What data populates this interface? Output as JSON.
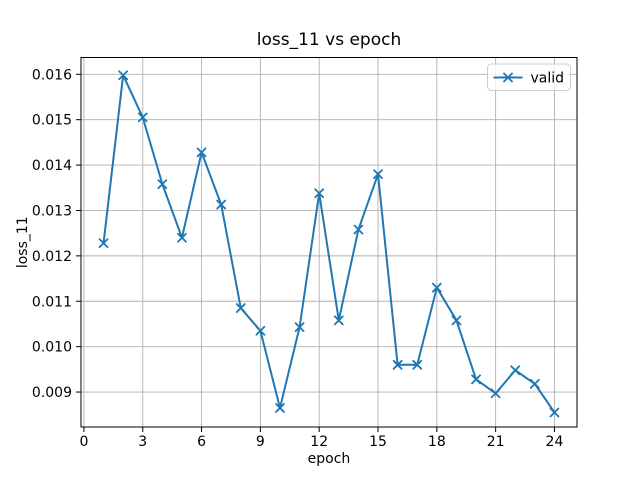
{
  "figure": {
    "background": "#ffffff",
    "text_color": "#000000"
  },
  "chart_data": {
    "type": "line",
    "title": "loss_11 vs epoch",
    "xlabel": "epoch",
    "ylabel": "loss_11",
    "x": [
      1,
      2,
      3,
      4,
      5,
      6,
      7,
      8,
      9,
      10,
      11,
      12,
      13,
      14,
      15,
      16,
      17,
      18,
      19,
      20,
      21,
      22,
      23,
      24
    ],
    "series": [
      {
        "name": "valid",
        "color": "#1f77b4",
        "marker": "x",
        "values": [
          0.01228,
          0.01598,
          0.01505,
          0.01358,
          0.0124,
          0.01428,
          0.01313,
          0.01085,
          0.01035,
          0.00865,
          0.01043,
          0.01338,
          0.01058,
          0.01258,
          0.0138,
          0.0096,
          0.0096,
          0.0113,
          0.01058,
          0.00928,
          0.00897,
          0.00948,
          0.00918,
          0.00855
        ]
      }
    ],
    "xticks": [
      0,
      3,
      6,
      9,
      12,
      15,
      18,
      21,
      24
    ],
    "xtick_labels": [
      "0",
      "3",
      "6",
      "9",
      "12",
      "15",
      "18",
      "21",
      "24"
    ],
    "yticks": [
      0.009,
      0.01,
      0.011,
      0.012,
      0.013,
      0.014,
      0.015,
      0.016
    ],
    "ytick_labels": [
      "0.009",
      "0.010",
      "0.011",
      "0.012",
      "0.013",
      "0.014",
      "0.015",
      "0.016"
    ],
    "xlim": [
      -0.15,
      25.15
    ],
    "ylim": [
      0.00823,
      0.01637
    ],
    "grid": true,
    "grid_color": "#b0b0b0",
    "spine_color": "#000000",
    "legend": {
      "position": "upper-right",
      "entries": [
        {
          "label": "valid",
          "color": "#1f77b4",
          "marker": "x"
        }
      ],
      "border_color": "#cccccc",
      "background": "#ffffff"
    }
  }
}
